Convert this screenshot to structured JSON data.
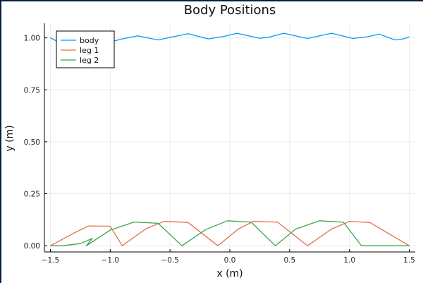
{
  "chart_data": {
    "type": "line",
    "title": "Body Positions",
    "xlabel": "x (m)",
    "ylabel": "y (m)",
    "xlim": [
      -1.55,
      1.55
    ],
    "ylim": [
      -0.03,
      1.07
    ],
    "xticks": [
      -1.5,
      -1.0,
      -0.5,
      0.0,
      0.5,
      1.0,
      1.5
    ],
    "xtick_labels": [
      "−1.5",
      "−1.0",
      "−0.5",
      "0.0",
      "0.5",
      "1.0",
      "1.5"
    ],
    "yticks": [
      0.0,
      0.25,
      0.5,
      0.75,
      1.0
    ],
    "ytick_labels": [
      "0.00",
      "0.25",
      "0.50",
      "0.75",
      "1.00"
    ],
    "grid": true,
    "legend_position": "top-left",
    "series": [
      {
        "name": "body",
        "color": "#009AFA",
        "points": [
          [
            -1.5,
            1.0
          ],
          [
            -1.45,
            0.985
          ],
          [
            -1.3,
            0.99
          ],
          [
            -1.15,
            0.997
          ],
          [
            -1.0,
            0.98
          ],
          [
            -0.9,
            0.995
          ],
          [
            -0.77,
            1.01
          ],
          [
            -0.6,
            0.99
          ],
          [
            -0.45,
            1.008
          ],
          [
            -0.35,
            1.02
          ],
          [
            -0.18,
            0.995
          ],
          [
            -0.05,
            1.007
          ],
          [
            0.06,
            1.022
          ],
          [
            0.25,
            0.998
          ],
          [
            0.32,
            1.002
          ],
          [
            0.45,
            1.022
          ],
          [
            0.65,
            0.997
          ],
          [
            0.85,
            1.022
          ],
          [
            1.03,
            0.997
          ],
          [
            1.15,
            1.005
          ],
          [
            1.25,
            1.018
          ],
          [
            1.38,
            0.99
          ],
          [
            1.45,
            0.995
          ],
          [
            1.5,
            1.005
          ]
        ]
      },
      {
        "name": "leg 1",
        "color": "#E36F47",
        "points": [
          [
            -1.5,
            0.0
          ],
          [
            -1.3,
            0.062
          ],
          [
            -1.18,
            0.095
          ],
          [
            -1.0,
            0.094
          ],
          [
            -0.9,
            0.0
          ],
          [
            -0.7,
            0.082
          ],
          [
            -0.55,
            0.117
          ],
          [
            -0.35,
            0.112
          ],
          [
            -0.1,
            0.0
          ],
          [
            0.07,
            0.08
          ],
          [
            0.2,
            0.118
          ],
          [
            0.4,
            0.113
          ],
          [
            0.65,
            0.0
          ],
          [
            0.85,
            0.08
          ],
          [
            1.0,
            0.117
          ],
          [
            1.17,
            0.112
          ],
          [
            1.5,
            0.0
          ]
        ]
      },
      {
        "name": "leg 2",
        "color": "#3EA44E",
        "points": [
          [
            -1.5,
            0.0
          ],
          [
            -1.4,
            0.0
          ],
          [
            -1.25,
            0.01
          ],
          [
            -1.15,
            0.035
          ],
          [
            -1.2,
            0.0
          ],
          [
            -1.0,
            0.075
          ],
          [
            -0.8,
            0.114
          ],
          [
            -0.6,
            0.108
          ],
          [
            -0.4,
            0.0
          ],
          [
            -0.2,
            0.078
          ],
          [
            -0.02,
            0.12
          ],
          [
            0.18,
            0.113
          ],
          [
            0.38,
            0.0
          ],
          [
            0.55,
            0.08
          ],
          [
            0.75,
            0.12
          ],
          [
            0.95,
            0.113
          ],
          [
            1.1,
            0.0
          ],
          [
            1.5,
            0.0
          ]
        ]
      }
    ]
  }
}
